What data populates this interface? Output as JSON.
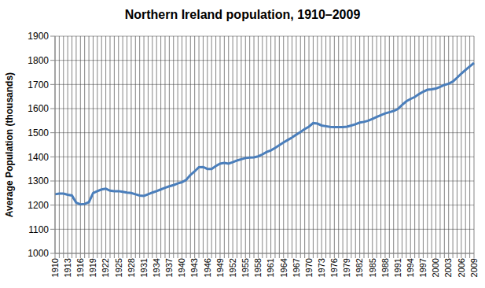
{
  "chart_data": {
    "type": "line",
    "title": "Northern Ireland population, 1910–2009",
    "y_label": "Average Population (thousands)",
    "categories": [
      "1910",
      null,
      null,
      "1913",
      null,
      null,
      "1916",
      null,
      null,
      "1919",
      null,
      null,
      "1922",
      null,
      null,
      "1925",
      null,
      null,
      "1928",
      null,
      null,
      "1931",
      null,
      null,
      "1934",
      null,
      null,
      "1937",
      null,
      null,
      "1940",
      null,
      null,
      "1943",
      null,
      null,
      "1946",
      null,
      null,
      "1949",
      null,
      null,
      "1952",
      null,
      null,
      "1955",
      null,
      null,
      "1958",
      null,
      null,
      "1961",
      null,
      null,
      "1964",
      null,
      null,
      "1967",
      null,
      null,
      "1970",
      null,
      null,
      "1973",
      null,
      null,
      "1976",
      null,
      null,
      "1979",
      null,
      null,
      "1982",
      null,
      null,
      "1985",
      null,
      null,
      "1988",
      null,
      null,
      "1991",
      null,
      null,
      "1994",
      null,
      null,
      "1997",
      null,
      null,
      "2000",
      null,
      null,
      "2003",
      null,
      null,
      "2006",
      null,
      null,
      "2009"
    ],
    "values": [
      1245,
      1248,
      1248,
      1243,
      1240,
      1210,
      1203,
      1205,
      1212,
      1250,
      1258,
      1265,
      1268,
      1260,
      1258,
      1258,
      1255,
      1252,
      1250,
      1245,
      1240,
      1238,
      1245,
      1252,
      1258,
      1265,
      1272,
      1278,
      1283,
      1290,
      1295,
      1305,
      1325,
      1340,
      1357,
      1358,
      1350,
      1350,
      1362,
      1372,
      1375,
      1372,
      1378,
      1385,
      1390,
      1395,
      1397,
      1398,
      1402,
      1410,
      1420,
      1427,
      1437,
      1448,
      1460,
      1470,
      1480,
      1492,
      1503,
      1515,
      1525,
      1540,
      1538,
      1530,
      1527,
      1524,
      1523,
      1523,
      1523,
      1525,
      1530,
      1535,
      1542,
      1545,
      1550,
      1557,
      1565,
      1573,
      1580,
      1585,
      1590,
      1598,
      1615,
      1630,
      1640,
      1648,
      1660,
      1670,
      1678,
      1680,
      1683,
      1690,
      1698,
      1703,
      1712,
      1728,
      1745,
      1760,
      1775,
      1789
    ],
    "color": "#4a7ebb",
    "ylim": [
      1000,
      1900
    ],
    "yticks": [
      1000,
      1100,
      1200,
      1300,
      1400,
      1500,
      1600,
      1700,
      1800,
      1900
    ],
    "grid": true
  }
}
